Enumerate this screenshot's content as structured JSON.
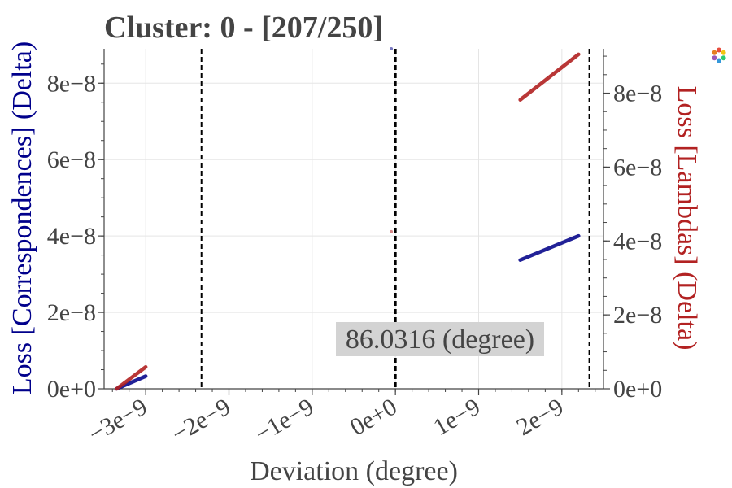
{
  "chart_data": {
    "type": "scatter",
    "title": "Cluster: 0 - [207/250]",
    "xlabel": "Deviation (degree)",
    "ylabel_left": "Loss [Correspondences] (Delta)",
    "ylabel_right": "Loss [Lambdas] (Delta)",
    "xlim": [
      -3.5e-09,
      2.5e-09
    ],
    "ylim_left": [
      0,
      8.9e-08
    ],
    "ylim_right": [
      0,
      9.2e-08
    ],
    "x_ticks": [
      {
        "value": -3e-09,
        "label": "−3e−9"
      },
      {
        "value": -2e-09,
        "label": "−2e−9"
      },
      {
        "value": -1e-09,
        "label": "−1e−9"
      },
      {
        "value": 0,
        "label": "0e+0"
      },
      {
        "value": 1e-09,
        "label": "1e−9"
      },
      {
        "value": 2e-09,
        "label": "2e−9"
      }
    ],
    "y_ticks_left": [
      {
        "value": 0,
        "label": "0e+0"
      },
      {
        "value": 2e-08,
        "label": "2e−8"
      },
      {
        "value": 4e-08,
        "label": "4e−8"
      },
      {
        "value": 6e-08,
        "label": "6e−8"
      },
      {
        "value": 8e-08,
        "label": "8e−8"
      }
    ],
    "y_ticks_right": [
      {
        "value": 0,
        "label": "0e+0"
      },
      {
        "value": 2e-08,
        "label": "2e−8"
      },
      {
        "value": 4e-08,
        "label": "4e−8"
      },
      {
        "value": 6e-08,
        "label": "6e−8"
      },
      {
        "value": 8e-08,
        "label": "8e−8"
      }
    ],
    "grid": true,
    "series": [
      {
        "axis": "left",
        "color": "#0a0a8c",
        "segments": [
          {
            "x0": -3.35e-09,
            "y0": 0.0,
            "x1": -3e-09,
            "y1": 3.3e-09
          },
          {
            "x0": 1.5e-09,
            "y0": 3.37e-08,
            "x1": 2.2e-09,
            "y1": 4e-08
          }
        ],
        "points": [
          {
            "x": -5e-11,
            "y": 8.9e-08
          }
        ]
      },
      {
        "axis": "right",
        "color": "#b22222",
        "segments": [
          {
            "x0": -3.35e-09,
            "y0": 0.0,
            "x1": -3e-09,
            "y1": 5.9e-09
          },
          {
            "x0": 1.5e-09,
            "y0": 7.82e-08,
            "x1": 2.2e-09,
            "y1": 9.05e-08
          }
        ],
        "points": [
          {
            "x": -5e-11,
            "y": 4.25e-08
          }
        ]
      }
    ],
    "vlines": [
      {
        "x": -2.33e-09,
        "color": "#000000",
        "style": "dashed"
      },
      {
        "x": 0.0,
        "color": "#000000",
        "style": "dashed",
        "bold": true
      },
      {
        "x": 2.33e-09,
        "color": "#000000",
        "style": "dashed"
      }
    ],
    "annotation": {
      "text": "86.0316 (degree)",
      "background": "#d3d3d3"
    },
    "colors": {
      "left_axis_title": "#00008b",
      "right_axis_title": "#b22222",
      "text": "#444444",
      "grid": "#e5e5e5"
    }
  }
}
